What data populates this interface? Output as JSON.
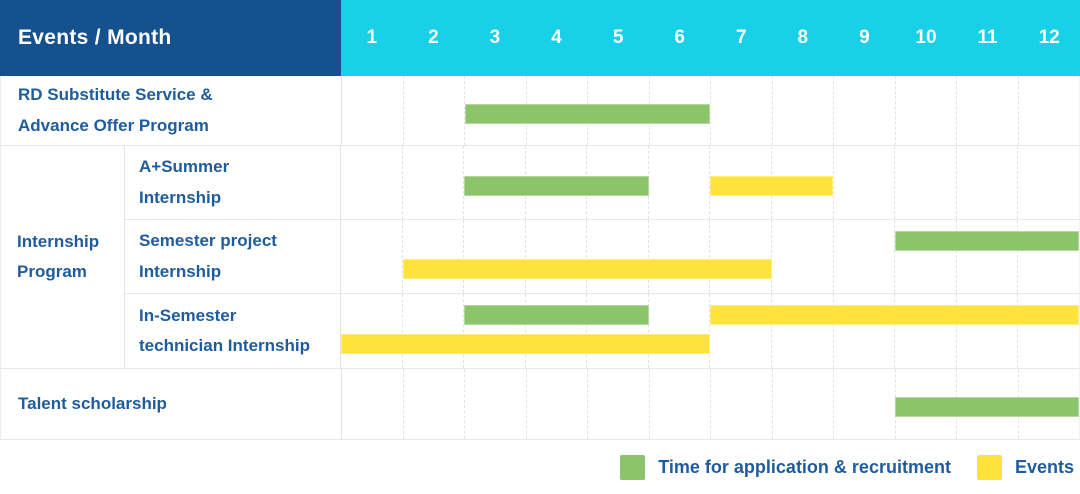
{
  "colors": {
    "header_bg": "#15508f",
    "months_bg": "#18d0e8",
    "text": "#1e5c9e",
    "recruitment_green": "#8bc46a",
    "event_yellow": "#ffe33c",
    "grid_line": "#e3e3e3",
    "row_line": "#e8e8e8"
  },
  "header": {
    "label": "Events / Month",
    "months": [
      "1",
      "2",
      "3",
      "4",
      "5",
      "6",
      "7",
      "8",
      "9",
      "10",
      "11",
      "12"
    ]
  },
  "rows": [
    {
      "type": "row",
      "lines": [
        "RD Substitute Service &",
        "Advance Offer Program"
      ],
      "bars": [
        {
          "category": "recruitment",
          "start": 3,
          "end": 6,
          "lane": "center"
        }
      ]
    },
    {
      "type": "group",
      "lines": [
        "Internship",
        "Program"
      ],
      "subrows": [
        {
          "lines": [
            "A+Summer",
            "Internship"
          ],
          "bars": [
            {
              "category": "recruitment",
              "start": 3,
              "end": 5,
              "lane": "center"
            },
            {
              "category": "event",
              "start": 7,
              "end": 8,
              "lane": "center"
            }
          ]
        },
        {
          "lines": [
            "Semester project",
            "Internship"
          ],
          "bars": [
            {
              "category": "recruitment",
              "start": 10,
              "end": 12,
              "lane": "top"
            },
            {
              "category": "event",
              "start": 2,
              "end": 7,
              "lane": "bottom"
            }
          ]
        },
        {
          "lines": [
            "In-Semester",
            "technician Internship"
          ],
          "bars": [
            {
              "category": "recruitment",
              "start": 3,
              "end": 5,
              "lane": "top"
            },
            {
              "category": "event",
              "start": 7,
              "end": 12,
              "lane": "top"
            },
            {
              "category": "event",
              "start": 1,
              "end": 6,
              "lane": "bottom"
            }
          ]
        }
      ]
    },
    {
      "type": "row",
      "lines": [
        "Talent scholarship"
      ],
      "bars": [
        {
          "category": "recruitment",
          "start": 10,
          "end": 12,
          "lane": "center"
        }
      ]
    }
  ],
  "legend": {
    "items": [
      {
        "category": "recruitment",
        "label": "Time for application & recruitment"
      },
      {
        "category": "event",
        "label": "Events"
      }
    ]
  },
  "chart_data": {
    "type": "bar",
    "subtype": "gantt",
    "title": "Events / Month",
    "x_axis": {
      "label": "Month",
      "ticks": [
        1,
        2,
        3,
        4,
        5,
        6,
        7,
        8,
        9,
        10,
        11,
        12
      ],
      "range": [
        1,
        12
      ]
    },
    "legend": [
      "Time for application & recruitment",
      "Events"
    ],
    "legend_position": "bottom-right",
    "grid": true,
    "tasks": [
      {
        "group": null,
        "name": "RD Substitute Service & Advance Offer Program",
        "spans": [
          {
            "series": "Time for application & recruitment",
            "start_month": 3,
            "end_month": 6
          }
        ]
      },
      {
        "group": "Internship Program",
        "name": "A+Summer Internship",
        "spans": [
          {
            "series": "Time for application & recruitment",
            "start_month": 3,
            "end_month": 5
          },
          {
            "series": "Events",
            "start_month": 7,
            "end_month": 8
          }
        ]
      },
      {
        "group": "Internship Program",
        "name": "Semester project Internship",
        "spans": [
          {
            "series": "Time for application & recruitment",
            "start_month": 10,
            "end_month": 12
          },
          {
            "series": "Events",
            "start_month": 2,
            "end_month": 7
          }
        ]
      },
      {
        "group": "Internship Program",
        "name": "In-Semester technician Internship",
        "spans": [
          {
            "series": "Time for application & recruitment",
            "start_month": 3,
            "end_month": 5
          },
          {
            "series": "Events",
            "start_month": 7,
            "end_month": 12
          },
          {
            "series": "Events",
            "start_month": 1,
            "end_month": 6
          }
        ]
      },
      {
        "group": null,
        "name": "Talent scholarship",
        "spans": [
          {
            "series": "Time for application & recruitment",
            "start_month": 10,
            "end_month": 12
          }
        ]
      }
    ]
  }
}
